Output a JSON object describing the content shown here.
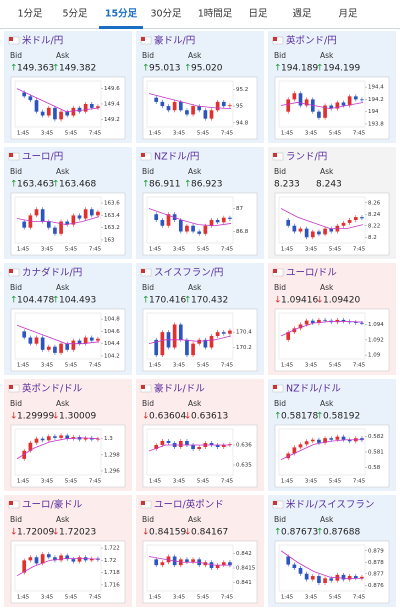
{
  "active_tab": 2,
  "tabs": [
    "1分足",
    "5分足",
    "15分足",
    "30分足",
    "1時間足",
    "日足",
    "週足",
    "月足"
  ],
  "panels": [
    {
      "title": "米ドル/円",
      "bid_label": "Bid",
      "ask_label": "Ask",
      "arrow": "↑",
      "bid": "149.363",
      "ask": "149.382",
      "trend": "up",
      "chart": {
        "type": "candlestick",
        "xticks": [
          "1:45",
          "3:45",
          "5:45",
          "7:45"
        ],
        "ylim": [
          149.1,
          149.7
        ],
        "yticks": [
          149.6,
          149.4,
          149.2
        ],
        "values": [
          149.55,
          149.5,
          149.45,
          149.3,
          149.25,
          149.35,
          149.2,
          149.3,
          149.25,
          149.35,
          149.3,
          149.4,
          149.35,
          149.37
        ],
        "ma": [
          149.6,
          149.5,
          149.4,
          149.3,
          149.32,
          149.35
        ]
      }
    },
    {
      "title": "豪ドル/円",
      "bid_label": "Bid",
      "ask_label": "Ask",
      "arrow": "↑",
      "bid": "95.013",
      "ask": "95.020",
      "trend": "up",
      "chart": {
        "type": "candlestick",
        "xticks": [
          "1:45",
          "3:45",
          "5:45",
          "7:45"
        ],
        "ylim": [
          94.75,
          95.3
        ],
        "yticks": [
          95.2,
          95,
          94.8
        ],
        "values": [
          95.1,
          95.05,
          95.0,
          94.95,
          95.05,
          94.95,
          94.9,
          95.0,
          94.95,
          94.85,
          94.95,
          95.05,
          95.0,
          95.01
        ],
        "ma": [
          95.15,
          95.1,
          95.05,
          95.0,
          94.98,
          94.97
        ]
      }
    },
    {
      "title": "英ポンド/円",
      "bid_label": "Bid",
      "ask_label": "Ask",
      "arrow": "↑",
      "bid": "194.189",
      "ask": "194.199",
      "trend": "up",
      "chart": {
        "type": "candlestick",
        "xticks": [
          "1:45",
          "3:45",
          "5:45",
          "7:45"
        ],
        "ylim": [
          193.75,
          194.5
        ],
        "yticks": [
          194.4,
          194.2,
          194,
          193.8
        ],
        "values": [
          194.0,
          194.2,
          194.3,
          194.1,
          194.2,
          194.0,
          193.9,
          194.1,
          194.05,
          194.15,
          194.1,
          194.25,
          194.2,
          194.19
        ],
        "ma": [
          194.1,
          194.15,
          194.1,
          194.05,
          194.1,
          194.15
        ]
      }
    },
    {
      "title": "ユーロ/円",
      "bid_label": "Bid",
      "ask_label": "Ask",
      "arrow": "↑",
      "bid": "163.463",
      "ask": "163.468",
      "trend": "up",
      "chart": {
        "type": "candlestick",
        "xticks": [
          "1:45",
          "3:45",
          "5:45",
          "7:45"
        ],
        "ylim": [
          162.95,
          163.7
        ],
        "yticks": [
          163.6,
          163.4,
          163.2,
          163
        ],
        "values": [
          163.3,
          163.2,
          163.4,
          163.5,
          163.3,
          163.2,
          163.1,
          163.3,
          163.25,
          163.4,
          163.35,
          163.5,
          163.4,
          163.46
        ],
        "ma": [
          163.35,
          163.3,
          163.3,
          163.25,
          163.3,
          163.38
        ]
      }
    },
    {
      "title": "NZドル/円",
      "bid_label": "Bid",
      "ask_label": "Ask",
      "arrow": "↑",
      "bid": "86.911",
      "ask": "86.923",
      "trend": "up",
      "chart": {
        "type": "candlestick",
        "xticks": [
          "1:45",
          "3:45",
          "5:45",
          "7:45"
        ],
        "ylim": [
          86.7,
          87.1
        ],
        "yticks": [
          87,
          86.8
        ],
        "values": [
          86.95,
          86.9,
          86.85,
          86.95,
          86.9,
          86.8,
          86.85,
          86.8,
          86.78,
          86.85,
          86.9,
          86.88,
          86.92,
          86.91
        ],
        "ma": [
          87.0,
          86.95,
          86.9,
          86.86,
          86.85,
          86.87
        ]
      }
    },
    {
      "title": "ランド/円",
      "bid_label": "Bid",
      "ask_label": "Ask",
      "arrow": "",
      "bid": "8.233",
      "ask": "8.243",
      "trend": "flat",
      "chart": {
        "type": "candlestick",
        "xticks": [
          "1:45",
          "3:45",
          "5:45",
          "7:45"
        ],
        "ylim": [
          8.19,
          8.27
        ],
        "yticks": [
          8.26,
          8.24,
          8.22,
          8.2
        ],
        "values": [
          8.23,
          8.22,
          8.21,
          8.215,
          8.2,
          8.21,
          8.205,
          8.215,
          8.21,
          8.22,
          8.225,
          8.23,
          8.235,
          8.233
        ],
        "ma": [
          8.25,
          8.235,
          8.225,
          8.215,
          8.215,
          8.222
        ]
      }
    },
    {
      "title": "カナダドル/円",
      "bid_label": "Bid",
      "ask_label": "Ask",
      "arrow": "↑",
      "bid": "104.478",
      "ask": "104.493",
      "trend": "up",
      "chart": {
        "type": "candlestick",
        "xticks": [
          "1:45",
          "3:45",
          "5:45",
          "7:45"
        ],
        "ylim": [
          104.15,
          104.9
        ],
        "yticks": [
          104.8,
          104.6,
          104.4,
          104.2
        ],
        "values": [
          104.6,
          104.5,
          104.4,
          104.5,
          104.3,
          104.35,
          104.25,
          104.4,
          104.3,
          104.45,
          104.4,
          104.5,
          104.45,
          104.48
        ],
        "ma": [
          104.7,
          104.6,
          104.5,
          104.4,
          104.4,
          104.43
        ]
      }
    },
    {
      "title": "スイスフラン/円",
      "bid_label": "Bid",
      "ask_label": "Ask",
      "arrow": "↑",
      "bid": "170.416",
      "ask": "170.432",
      "trend": "up",
      "chart": {
        "type": "candlestick",
        "xticks": [
          "1:45",
          "3:45",
          "5:45",
          "7:45"
        ],
        "ylim": [
          170.05,
          170.65
        ],
        "yticks": [
          170.4,
          170.2
        ],
        "values": [
          170.3,
          170.1,
          170.4,
          170.2,
          170.5,
          170.3,
          170.1,
          170.25,
          170.3,
          170.2,
          170.35,
          170.4,
          170.38,
          170.42
        ],
        "ma": [
          170.25,
          170.3,
          170.3,
          170.28,
          170.3,
          170.35
        ]
      }
    },
    {
      "title": "ユーロ/ドル",
      "bid_label": "Bid",
      "ask_label": "Ask",
      "arrow": "↓",
      "bid": "1.09416",
      "ask": "1.09420",
      "trend": "down",
      "chart": {
        "type": "candlestick",
        "xticks": [
          "1:45",
          "3:45",
          "5:45",
          "7:45"
        ],
        "ylim": [
          1.0895,
          1.0955
        ],
        "yticks": [
          1.094,
          1.092,
          1.09
        ],
        "values": [
          1.092,
          1.093,
          1.0935,
          1.094,
          1.0945,
          1.0942,
          1.0946,
          1.0945,
          1.0943,
          1.0946,
          1.0944,
          1.0943,
          1.0942,
          1.09416
        ],
        "ma": [
          1.0925,
          1.0935,
          1.0942,
          1.0944,
          1.0944,
          1.0943
        ]
      }
    },
    {
      "title": "英ポンド/ドル",
      "bid_label": "Bid",
      "ask_label": "Ask",
      "arrow": "↓",
      "bid": "1.29999",
      "ask": "1.30009",
      "trend": "down",
      "chart": {
        "type": "candlestick",
        "xticks": [
          "1:45",
          "3:45",
          "5:45",
          "7:45"
        ],
        "ylim": [
          1.2955,
          1.3012
        ],
        "yticks": [
          1.3,
          1.298,
          1.296
        ],
        "values": [
          1.2975,
          1.2985,
          1.2995,
          1.3,
          1.2998,
          1.3003,
          1.3001,
          1.3004,
          1.3,
          1.3002,
          1.2999,
          1.3001,
          1.2999,
          1.29999
        ],
        "ma": [
          1.2975,
          1.2988,
          1.2996,
          1.3,
          1.3001,
          1.3
        ]
      }
    },
    {
      "title": "豪ドル/ドル",
      "bid_label": "Bid",
      "ask_label": "Ask",
      "arrow": "↓",
      "bid": "0.63604",
      "ask": "0.63613",
      "trend": "down",
      "chart": {
        "type": "candlestick",
        "xticks": [
          "1:45",
          "3:45",
          "5:45",
          "7:45"
        ],
        "ylim": [
          0.6345,
          0.6368
        ],
        "yticks": [
          0.636,
          0.635
        ],
        "values": [
          0.6358,
          0.636,
          0.6362,
          0.6361,
          0.6359,
          0.6362,
          0.636,
          0.6358,
          0.6359,
          0.6361,
          0.636,
          0.6359,
          0.636,
          0.63604
        ],
        "ma": [
          0.6357,
          0.636,
          0.636,
          0.636,
          0.636,
          0.636
        ]
      }
    },
    {
      "title": "NZドル/ドル",
      "bid_label": "Bid",
      "ask_label": "Ask",
      "arrow": "↑",
      "bid": "0.58178",
      "ask": "0.58192",
      "trend": "up",
      "chart": {
        "type": "candlestick",
        "xticks": [
          "1:45",
          "3:45",
          "5:45",
          "7:45"
        ],
        "ylim": [
          0.5795,
          0.5825
        ],
        "yticks": [
          0.582,
          0.581,
          0.58
        ],
        "values": [
          0.5806,
          0.5809,
          0.5813,
          0.5815,
          0.5817,
          0.5818,
          0.5816,
          0.5819,
          0.5818,
          0.582,
          0.5818,
          0.5817,
          0.5819,
          0.58178
        ],
        "ma": [
          0.5805,
          0.581,
          0.5815,
          0.5817,
          0.5818,
          0.5818
        ]
      }
    },
    {
      "title": "ユーロ/豪ドル",
      "bid_label": "Bid",
      "ask_label": "Ask",
      "arrow": "↓",
      "bid": "1.72009",
      "ask": "1.72023",
      "trend": "down",
      "chart": {
        "type": "candlestick",
        "xticks": [
          "1:45",
          "3:45",
          "5:45",
          "7:45"
        ],
        "ylim": [
          1.715,
          1.7225
        ],
        "yticks": [
          1.722,
          1.72,
          1.718,
          1.716
        ],
        "values": [
          1.718,
          1.72,
          1.7205,
          1.7195,
          1.721,
          1.7205,
          1.72,
          1.7208,
          1.7202,
          1.7198,
          1.7205,
          1.72,
          1.7203,
          1.72009
        ],
        "ma": [
          1.7175,
          1.719,
          1.72,
          1.7203,
          1.7203,
          1.7202
        ]
      }
    },
    {
      "title": "ユーロ/英ポンド",
      "bid_label": "Bid",
      "ask_label": "Ask",
      "arrow": "↓",
      "bid": "0.84159",
      "ask": "0.84167",
      "trend": "down",
      "chart": {
        "type": "candlestick",
        "xticks": [
          "1:45",
          "3:45",
          "5:45",
          "7:45"
        ],
        "ylim": [
          0.8407,
          0.8423
        ],
        "yticks": [
          0.842,
          0.8415,
          0.841
        ],
        "values": [
          0.8418,
          0.8416,
          0.8417,
          0.8419,
          0.8416,
          0.8418,
          0.8417,
          0.8418,
          0.8416,
          0.8417,
          0.8415,
          0.8416,
          0.8417,
          0.84159
        ],
        "ma": [
          0.8419,
          0.8418,
          0.8417,
          0.8417,
          0.8416,
          0.8416
        ]
      }
    },
    {
      "title": "米ドル/スイスフラン",
      "bid_label": "Bid",
      "ask_label": "Ask",
      "arrow": "↑",
      "bid": "0.87673",
      "ask": "0.87688",
      "trend": "up",
      "chart": {
        "type": "candlestick",
        "xticks": [
          "1:45",
          "3:45",
          "5:45",
          "7:45"
        ],
        "ylim": [
          0.8755,
          0.8795
        ],
        "yticks": [
          0.879,
          0.878,
          0.877,
          0.876
        ],
        "values": [
          0.8785,
          0.8778,
          0.8775,
          0.877,
          0.8765,
          0.8768,
          0.8762,
          0.8766,
          0.8764,
          0.8769,
          0.8765,
          0.8768,
          0.8766,
          0.87673
        ],
        "ma": [
          0.879,
          0.878,
          0.8772,
          0.8767,
          0.8766,
          0.8766
        ]
      }
    }
  ]
}
